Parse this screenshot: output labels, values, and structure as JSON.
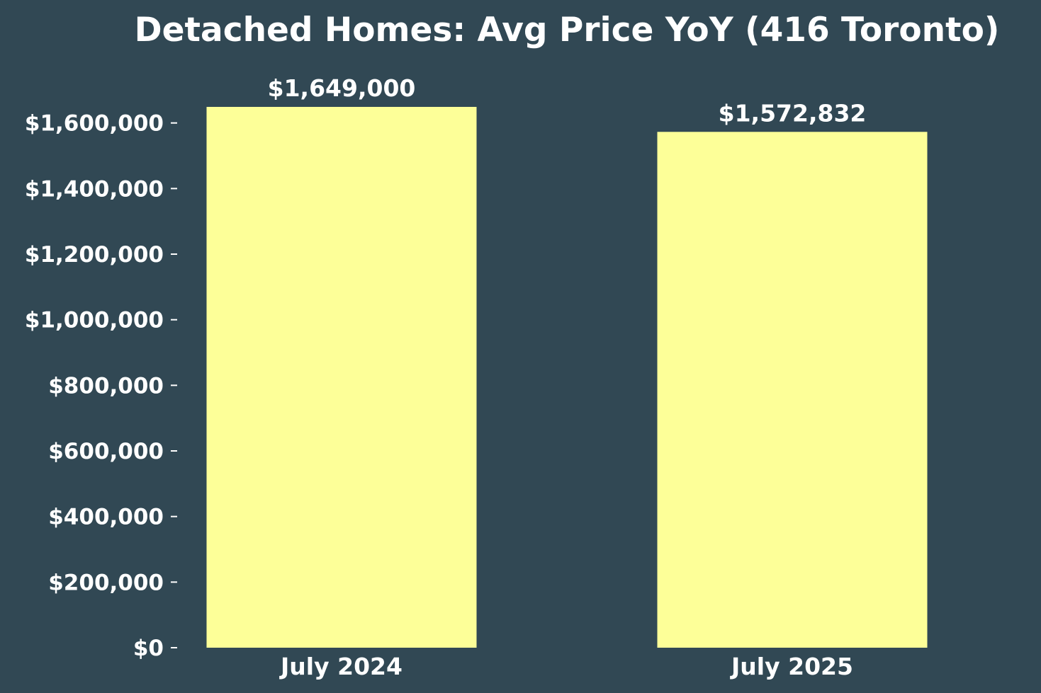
{
  "chart_data": {
    "type": "bar",
    "title": "Detached Homes: Avg Price YoY (416 Toronto)",
    "xlabel": "",
    "ylabel": "",
    "categories": [
      "July 2024",
      "July 2025"
    ],
    "values": [
      1649000,
      1572832
    ],
    "data_labels": [
      "$1,649,000",
      "$1,572,832"
    ],
    "ylim": [
      0,
      1649000
    ],
    "y_ticks": [
      0,
      200000,
      400000,
      600000,
      800000,
      1000000,
      1200000,
      1400000,
      1600000
    ],
    "y_tick_labels": [
      "$0",
      "$200,000",
      "$400,000",
      "$600,000",
      "$800,000",
      "$1,000,000",
      "$1,200,000",
      "$1,400,000",
      "$1,600,000"
    ],
    "grid": false,
    "legend": "none",
    "colors": {
      "background": "#314854",
      "bar": "#FDFF98",
      "text": "#FFFFFF",
      "ticks": "#FFFFFF"
    }
  }
}
